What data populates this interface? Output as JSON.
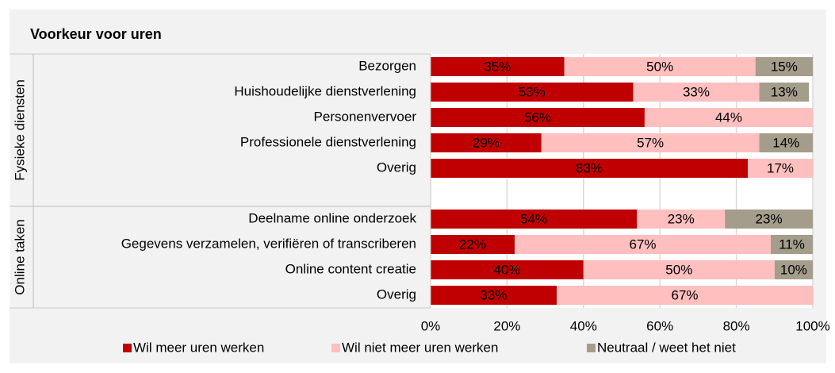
{
  "chart_data": {
    "type": "stacked_barh",
    "title": "Voorkeur voor uren",
    "groups": [
      {
        "name": "Fysieke diensten",
        "categories": [
          "Bezorgen",
          "Huishoudelijke dienstverlening",
          "Personenvervoer",
          "Professionele dienstverlening",
          "Overig",
          null
        ]
      },
      {
        "name": "Online taken",
        "categories": [
          "Deelname online onderzoek",
          "Gegevens verzamelen, verifiëren of transcriberen",
          "Online content creatie",
          "Overig"
        ]
      }
    ],
    "series": [
      {
        "name": "Wil meer uren werken",
        "color": "#c00000",
        "label_color": "#ffffff",
        "values": [
          35,
          53,
          56,
          29,
          83,
          null,
          54,
          22,
          40,
          33
        ],
        "value_labels": [
          "35%",
          "53%",
          "56%",
          "29%",
          "83%",
          null,
          "54%",
          "22%",
          "40%",
          "33%"
        ]
      },
      {
        "name": "Wil niet meer uren werken",
        "color": "#ffbfbf",
        "label_color": "#ffffff",
        "values": [
          50,
          33,
          44,
          57,
          17,
          null,
          23,
          67,
          50,
          67
        ],
        "value_labels": [
          "50%",
          "33%",
          "44%",
          "57%",
          "17%",
          null,
          "23%",
          "67%",
          "50%",
          "67%"
        ]
      },
      {
        "name": "Neutraal / weet het niet",
        "color": "#a59d8b",
        "label_color": "#000000",
        "values": [
          15,
          13,
          null,
          14,
          null,
          null,
          23,
          11,
          10,
          null
        ],
        "value_labels": [
          "15%",
          "13%",
          null,
          "14%",
          null,
          null,
          "23%",
          "11%",
          "10%",
          null
        ]
      }
    ],
    "xlim": [
      0,
      100
    ],
    "xticks": [
      {
        "value": 0,
        "label": "0%"
      },
      {
        "value": 20,
        "label": "20%"
      },
      {
        "value": 40,
        "label": "40%"
      },
      {
        "value": 60,
        "label": "60%"
      },
      {
        "value": 80,
        "label": "80%"
      },
      {
        "value": 100,
        "label": "100%"
      }
    ],
    "grid": true,
    "legend": "bottom"
  }
}
